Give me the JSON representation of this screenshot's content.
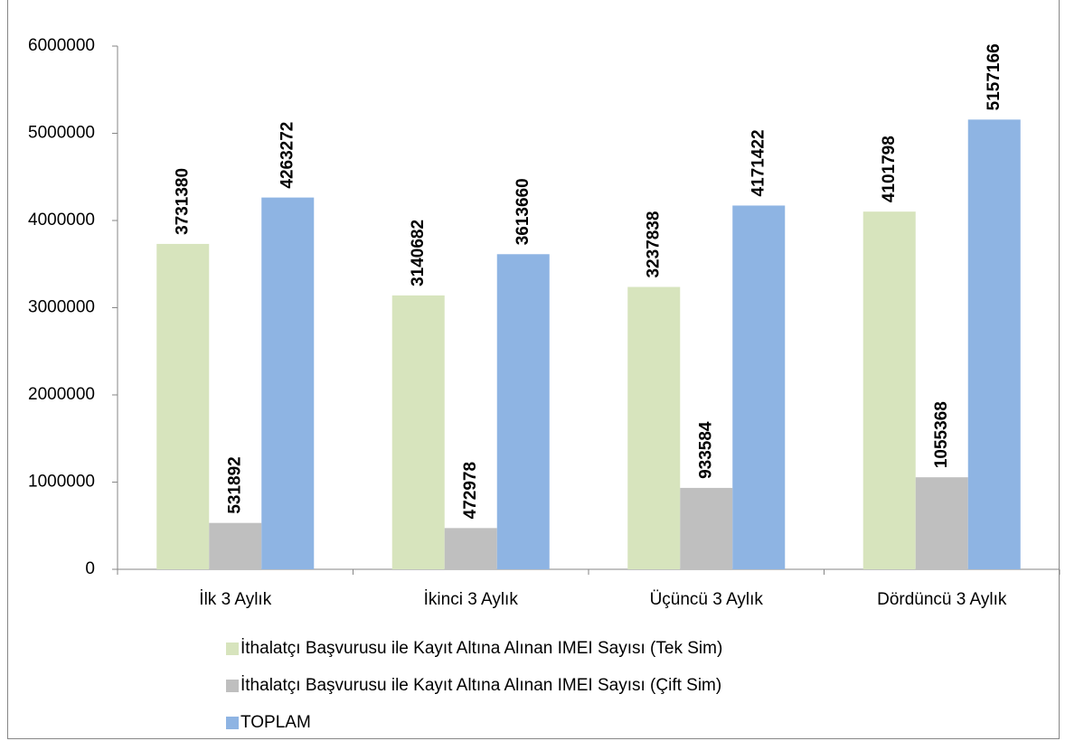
{
  "chart_data": {
    "type": "bar",
    "categories": [
      "İlk 3 Aylık",
      "İkinci 3 Aylık",
      "Üçüncü 3 Aylık",
      "Dördüncü 3 Aylık"
    ],
    "series": [
      {
        "name": "İthalatçı Başvurusu ile Kayıt Altına Alınan IMEI Sayısı (Tek Sim)",
        "color": "#d7e4bd",
        "values": [
          3731380,
          3140682,
          3237838,
          4101798
        ]
      },
      {
        "name": "İthalatçı Başvurusu ile Kayıt Altına Alınan IMEI Sayısı (Çift Sim)",
        "color": "#bfbfbf",
        "values": [
          531892,
          472978,
          933584,
          1055368
        ]
      },
      {
        "name": "TOPLAM",
        "color": "#8eb4e3",
        "values": [
          4263272,
          3613660,
          4171422,
          5157166
        ]
      }
    ],
    "ylim": [
      0,
      6000000
    ],
    "yticks": [
      0,
      1000000,
      2000000,
      3000000,
      4000000,
      5000000,
      6000000
    ],
    "grid": false,
    "legend": "bottom"
  }
}
